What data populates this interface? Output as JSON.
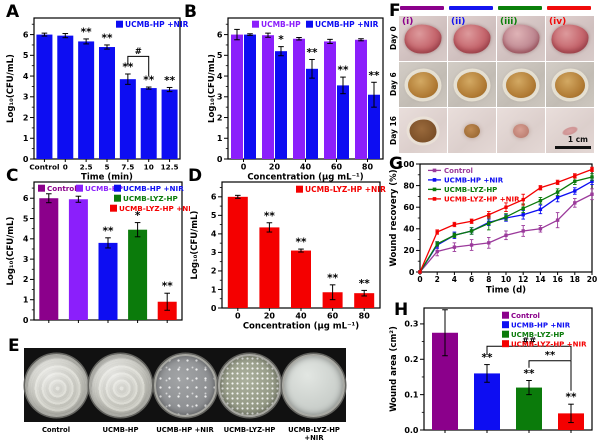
{
  "panels": {
    "A": "A",
    "B": "B",
    "C": "C",
    "D": "D",
    "E": "E",
    "F": "F",
    "G": "G",
    "H": "H"
  },
  "colors": {
    "control_purple": "#8B008B",
    "ucmb_hp_violet": "#8B1FFB",
    "ucmb_hp_nir_blue": "#0D0DF2",
    "ucmb_lyz_hp_green": "#0B7B0B",
    "ucmb_lyz_hp_nir_red": "#F40000",
    "control_line_purple": "#9B3A9B"
  },
  "chart_data": [
    {
      "id": "A",
      "type": "bar",
      "legend": [
        {
          "label": "UCMB-HP +NIR",
          "color": "#0D0DF2"
        }
      ],
      "categories": [
        "Control",
        "0",
        "2.5",
        "5",
        "7.5",
        "10",
        "12.5"
      ],
      "series": [
        {
          "name": "UCMB-HP +NIR",
          "color": "#0D0DF2",
          "values": [
            6.0,
            5.95,
            5.67,
            5.4,
            3.85,
            3.42,
            3.35
          ],
          "errors": [
            0.07,
            0.1,
            0.12,
            0.1,
            0.25,
            0.05,
            0.1
          ],
          "sig": [
            "",
            "",
            "**",
            "**",
            "**",
            "**",
            "**"
          ]
        }
      ],
      "brackets": [
        {
          "from": 4,
          "to": 5,
          "y": 4.95,
          "drops": [
            9,
            20
          ],
          "label": "#"
        }
      ],
      "ylabel": "Log₁₀(CFU/mL)",
      "xlabel": "Time (min)",
      "ylim": [
        0,
        6.8
      ],
      "yticks": [
        "0",
        "1",
        "2",
        "3",
        "4",
        "5",
        "6"
      ],
      "yminor": 0.5
    },
    {
      "id": "B",
      "type": "bar",
      "legend": [
        {
          "label": "UCMB-HP",
          "color": "#8B1FFB"
        },
        {
          "label": "UCMB-HP +NIR",
          "color": "#0D0DF2"
        }
      ],
      "categories": [
        "0",
        "20",
        "40",
        "60",
        "80"
      ],
      "series": [
        {
          "name": "UCMB-HP",
          "color": "#8B1FFB",
          "values": [
            6.0,
            5.97,
            5.8,
            5.67,
            5.75
          ],
          "errors": [
            0.25,
            0.1,
            0.06,
            0.1,
            0.05
          ],
          "sig": [
            "",
            "",
            "",
            "",
            ""
          ]
        },
        {
          "name": "UCMB-HP +NIR",
          "color": "#0D0DF2",
          "values": [
            6.0,
            5.2,
            4.35,
            3.55,
            3.1
          ],
          "errors": [
            0.04,
            0.22,
            0.45,
            0.4,
            0.6
          ],
          "sig": [
            "",
            "*",
            "**",
            "**",
            "**"
          ]
        }
      ],
      "ylabel": "Log₁₀(CFU/mL)",
      "xlabel": "Concentration (μg mL⁻¹)",
      "ylim": [
        0,
        6.8
      ],
      "yticks": [
        "0",
        "1",
        "2",
        "3",
        "4",
        "5",
        "6"
      ],
      "yminor": 0.5
    },
    {
      "id": "C",
      "type": "bar",
      "legend": [
        {
          "label": "Control",
          "color": "#8B008B"
        },
        {
          "label": "UCMB-HP",
          "color": "#8B1FFB"
        },
        {
          "label": "UCMB-HP +NIR",
          "color": "#0D0DF2"
        },
        {
          "label": "UCMB-LYZ-HP",
          "color": "#0B7B0B"
        },
        {
          "label": "UCMB-LYZ-HP +NIR",
          "color": "#F40000"
        }
      ],
      "categories": [
        "Control",
        "UCMB-HP",
        "UCMB-HP +NIR",
        "UCMB-LYZ-HP",
        "UCMB-LYZ-HP +NIR"
      ],
      "xticklabels": false,
      "series": [
        {
          "name": "groups",
          "colors": [
            "#8B008B",
            "#8B1FFB",
            "#0D0DF2",
            "#0B7B0B",
            "#F40000"
          ],
          "values": [
            6.0,
            5.95,
            3.8,
            4.45,
            0.9
          ],
          "errors": [
            0.22,
            0.15,
            0.25,
            0.35,
            0.42
          ],
          "sig": [
            "",
            "",
            "**",
            "*",
            "**"
          ]
        }
      ],
      "ylabel": "Log₁₀(CFU/mL)",
      "xlabel": "",
      "ylim": [
        0,
        6.8
      ],
      "yticks": [
        "0",
        "1",
        "2",
        "3",
        "4",
        "5",
        "6"
      ],
      "yminor": 0.5
    },
    {
      "id": "D",
      "type": "bar",
      "legend": [
        {
          "label": "UCMB-LYZ-HP +NIR",
          "color": "#F40000"
        }
      ],
      "categories": [
        "0",
        "20",
        "40",
        "60",
        "80"
      ],
      "series": [
        {
          "name": "UCMB-LYZ-HP +NIR",
          "color": "#F40000",
          "values": [
            6.0,
            4.35,
            3.1,
            0.85,
            0.8
          ],
          "errors": [
            0.08,
            0.25,
            0.08,
            0.4,
            0.15
          ],
          "sig": [
            "",
            "**",
            "**",
            "**",
            "**"
          ]
        }
      ],
      "ylabel": "Log₁₀(CFU/mL)",
      "xlabel": "Concentration (μg mL⁻¹)",
      "ylim": [
        0,
        6.8
      ],
      "yticks": [
        "0",
        "1",
        "2",
        "3",
        "4",
        "5",
        "6"
      ],
      "yminor": 0.5
    },
    {
      "id": "G",
      "type": "line",
      "x": [
        "0",
        "2",
        "4",
        "6",
        "8",
        "10",
        "12",
        "14",
        "16",
        "18",
        "20"
      ],
      "series": [
        {
          "name": "Control",
          "color": "#9B3A9B",
          "values": [
            0,
            19,
            23,
            25,
            27,
            34,
            38,
            40,
            48,
            64,
            72
          ],
          "errors": [
            0,
            4,
            4,
            5,
            5,
            4,
            5,
            3,
            7,
            4,
            5
          ]
        },
        {
          "name": "UCMB-HP +NIR",
          "color": "#0D0DF2",
          "values": [
            0,
            25,
            34,
            38,
            46,
            50,
            53,
            58,
            69,
            75,
            84
          ],
          "errors": [
            0,
            3,
            3,
            3,
            3,
            3,
            4,
            4,
            4,
            3,
            3
          ]
        },
        {
          "name": "UCMB-LYZ-HP",
          "color": "#0B7B0B",
          "values": [
            0,
            26,
            34,
            38,
            45,
            51,
            59,
            66,
            74,
            84,
            88
          ],
          "errors": [
            0,
            2,
            2,
            3,
            6,
            3,
            4,
            3,
            3,
            3,
            3
          ]
        },
        {
          "name": "UCMB-LYZ-HP +NIR",
          "color": "#F40000",
          "values": [
            0,
            37,
            44,
            47,
            53,
            60,
            67,
            78,
            83,
            89,
            95
          ],
          "errors": [
            0,
            2,
            2,
            2,
            3,
            4,
            5,
            2,
            2,
            2,
            2
          ]
        }
      ],
      "ylabel": "Wound recovery (%)",
      "xlabel": "Time (d)",
      "ylim": [
        0,
        100
      ],
      "yticks": [
        "0",
        "20",
        "40",
        "60",
        "80",
        "100"
      ],
      "yminor": 10
    },
    {
      "id": "H",
      "type": "bar",
      "legend": [
        {
          "label": "Control",
          "color": "#8B008B"
        },
        {
          "label": "UCMB-HP +NIR",
          "color": "#0D0DF2"
        },
        {
          "label": "UCMB-LYZ-HP",
          "color": "#0B7B0B"
        },
        {
          "label": "UCMB-LYZ-HP +NIR",
          "color": "#F40000"
        }
      ],
      "categories": [
        "Control",
        "UCMB-HP +NIR",
        "UCMB-LYZ-HP",
        "UCMB-LYZ-HP +NIR"
      ],
      "xticklabels": false,
      "series": [
        {
          "name": "groups",
          "colors": [
            "#8B008B",
            "#0D0DF2",
            "#0B7B0B",
            "#F40000"
          ],
          "values": [
            0.275,
            0.16,
            0.12,
            0.047
          ],
          "errors": [
            0.065,
            0.025,
            0.02,
            0.026
          ],
          "sig": [
            "",
            "**",
            "**",
            "**"
          ]
        }
      ],
      "brackets": [
        {
          "from": 1,
          "to": 3,
          "y": 0.237,
          "drops": [
            8,
            14
          ],
          "label": "##"
        },
        {
          "from": 2,
          "to": 3,
          "y": 0.196,
          "drops": [
            7,
            30
          ],
          "label": "**"
        }
      ],
      "ylabel": "Wound area (cm²)",
      "xlabel": "",
      "ylim": [
        0,
        0.345
      ],
      "yticks": [
        "0.0",
        "0.1",
        "0.2",
        "0.3"
      ],
      "yminor": 0.05
    }
  ],
  "panel_e": {
    "dishes": [
      {
        "label": "Control",
        "appearance": "dense bacterial lawn"
      },
      {
        "label": "UCMB-HP",
        "appearance": "dense bacterial lawn"
      },
      {
        "label": "UCMB-HP +NIR",
        "appearance": "sparse colonies"
      },
      {
        "label": "UCMB-LYZ-HP",
        "appearance": "speckled colonies"
      },
      {
        "label": "UCMB-LYZ-HP +NIR",
        "appearance": "clear plate"
      }
    ]
  },
  "panel_f": {
    "columns": [
      {
        "label": "(i)",
        "color": "#8B008B"
      },
      {
        "label": "(ii)",
        "color": "#1414F0"
      },
      {
        "label": "(iii)",
        "color": "#0A800A"
      },
      {
        "label": "(iv)",
        "color": "#F00A0A"
      }
    ],
    "rows": [
      {
        "label": "Day 0"
      },
      {
        "label": "Day 6"
      },
      {
        "label": "Day 16"
      }
    ],
    "scale_bar": "1 cm"
  }
}
